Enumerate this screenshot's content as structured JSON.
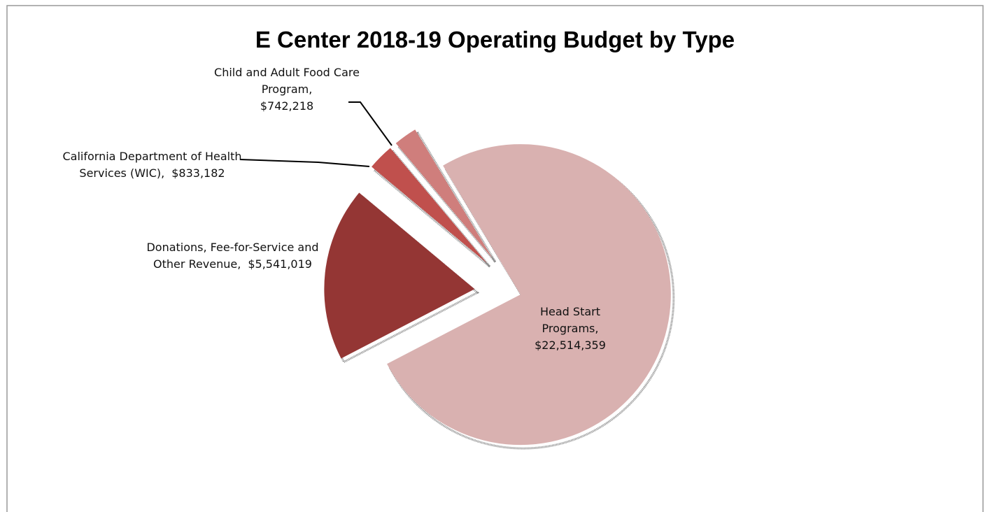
{
  "chart_data": {
    "type": "pie",
    "title": "E Center 2018-19 Operating Budget by Type",
    "categories": [
      "Head Start Programs,",
      "Donations, Fee-for-Service and Other Revenue,",
      "California Department of Health Services (WIC),",
      "Child and Adult Food Care Program,"
    ],
    "values": [
      22514359,
      5541019,
      833182,
      742218
    ],
    "value_labels": [
      "$22,514,359",
      "$5,541,019",
      "$833,182",
      "$742,218"
    ],
    "colors": [
      "#d9b1b0",
      "#943634",
      "#c0504d",
      "#cf7e7c"
    ]
  }
}
